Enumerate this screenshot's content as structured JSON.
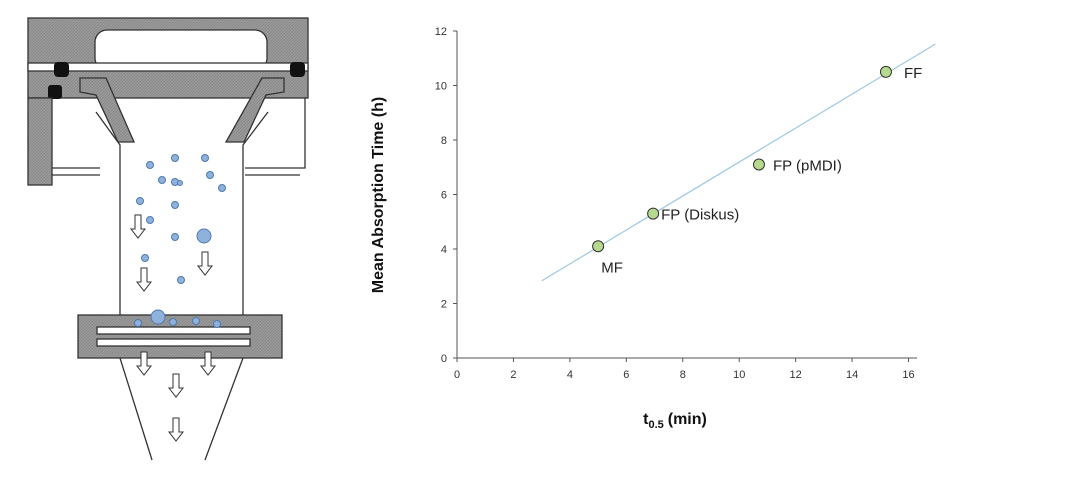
{
  "chart_data": {
    "type": "scatter",
    "x_label": {
      "text": "t",
      "subscript": "0.5",
      "suffix": "(min)"
    },
    "y_label": "Mean Absorption Time (h)",
    "x": [
      5.0,
      6.95,
      10.7,
      15.2
    ],
    "y": [
      4.1,
      5.3,
      7.1,
      10.5
    ],
    "point_labels": [
      "MF",
      "FP (Diskus)",
      "FP (pMDI)",
      "FF"
    ],
    "color": "#b5d98e",
    "edge_color": "#333333",
    "trendline": {
      "color": "#9cc8e4",
      "x": [
        3.0,
        16.95
      ],
      "y": [
        2.83,
        11.52
      ]
    },
    "xlim": [
      0,
      16.3
    ],
    "ylim": [
      0,
      12
    ],
    "xticks": [
      0,
      2,
      4,
      6,
      8,
      10,
      12,
      14,
      16
    ],
    "yticks": [
      0,
      2,
      4,
      6,
      8,
      10,
      12
    ]
  }
}
